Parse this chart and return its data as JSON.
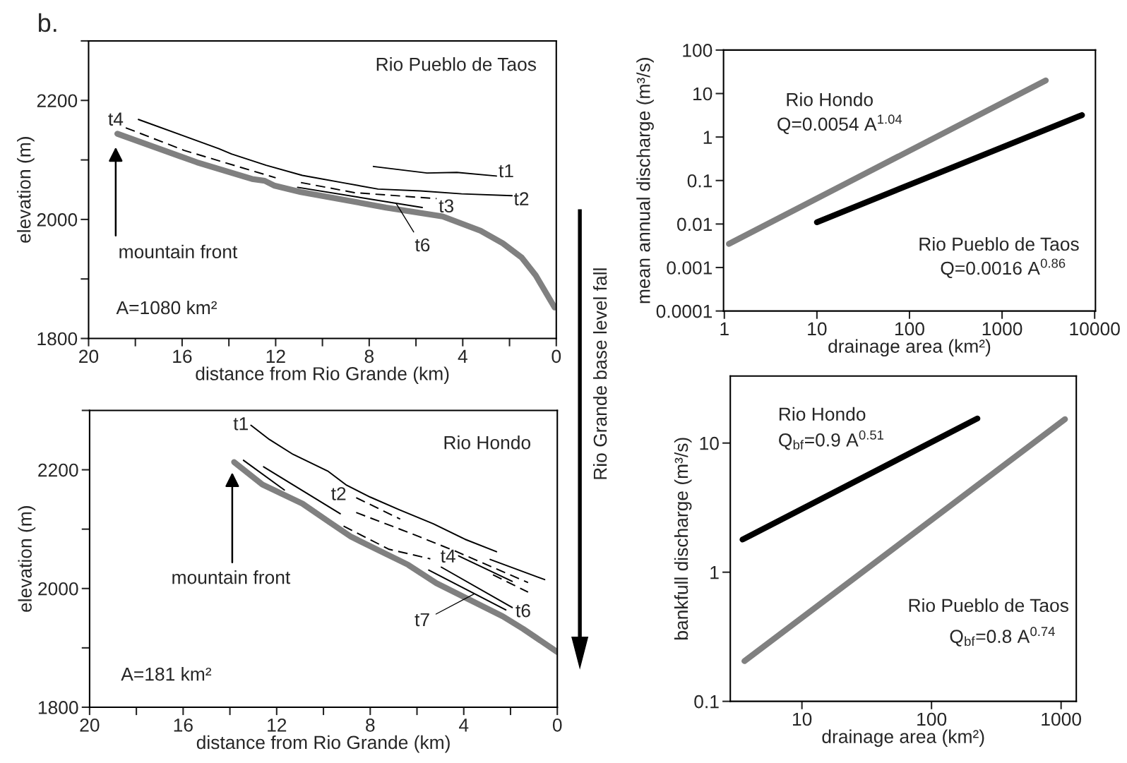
{
  "chart_data": [
    {
      "type": "line",
      "title": "Rio Pueblo de Taos",
      "xlabel": "distance from Rio Grande (km)",
      "ylabel": "elevation (m)",
      "xlim": [
        20,
        0
      ],
      "ylim": [
        1800,
        2300
      ],
      "xticks": [
        20,
        {
          "value": 18,
          "label": null
        },
        16,
        {
          "value": 14,
          "label": null
        },
        12,
        {
          "value": 10,
          "label": null
        },
        8,
        {
          "value": 6,
          "label": null
        },
        4,
        {
          "value": 2,
          "label": null
        },
        0
      ],
      "yticks": [
        1800,
        {
          "value": 1900,
          "label": null
        },
        2000,
        {
          "value": 2100,
          "label": null
        },
        2200,
        {
          "value": 2300,
          "label": null
        }
      ],
      "series": [
        {
          "color": "#808080",
          "line_style": "solid",
          "x": [
            18.77,
            15.37,
            13.01,
            12.47,
            12.07,
            10.92,
            7.28,
            4.86,
            3.24,
            2.29,
            1.48,
            0.88,
            0.4,
            0.07
          ],
          "values": [
            2144,
            2096,
            2068,
            2065,
            2057,
            2046,
            2020,
            2005,
            1981,
            1960,
            1936,
            1906,
            1874,
            1852
          ]
        },
        {
          "color": "#000000",
          "line_style": "solid",
          "x": [
            7.82,
            5.53,
            4.25,
            2.56
          ],
          "values": [
            2089,
            2078,
            2079,
            2073
          ]
        },
        {
          "color": "#000000",
          "line_style": "solid",
          "x": [
            17.87,
            16.05,
            14.43,
            13.89,
            12.41,
            10.86,
            9.17,
            7.62,
            5.8,
            4.05,
            1.89
          ],
          "values": [
            2168,
            2142,
            2119,
            2110,
            2091,
            2074,
            2062,
            2051,
            2048,
            2043,
            2040
          ]
        },
        {
          "color": "#000000",
          "line_style": "dashed",
          "x": [
            18.41,
            15.91,
            12.0
          ],
          "values": [
            2154,
            2116,
            2070
          ]
        },
        {
          "color": "#000000",
          "line_style": "dashed",
          "x": [
            10.92,
            8.63,
            5.12
          ],
          "values": [
            2062,
            2045,
            2035
          ]
        },
        {
          "color": "#000000",
          "line_style": "solid",
          "x": [
            11.06,
            5.73
          ],
          "values": [
            2054,
            2020
          ]
        }
      ],
      "annotations": [
        "b.",
        "Rio Grande base level fall",
        "A=1080 km²",
        "t4",
        "t1",
        "t2",
        "t3",
        {
          "text": "t6",
          "x": 6.85,
          "y": 2027
        },
        "mountain front"
      ]
    },
    {
      "type": "line",
      "title": "Rio Hondo",
      "xlabel": "distance from Rio Grande (km)",
      "ylabel": "elevation (m)",
      "xlim": [
        20,
        0
      ],
      "ylim": [
        1800,
        2300
      ],
      "xticks": [
        20,
        {
          "value": 18,
          "label": null
        },
        16,
        {
          "value": 14,
          "label": null
        },
        12,
        {
          "value": 10,
          "label": null
        },
        8,
        {
          "value": 6,
          "label": null
        },
        4,
        {
          "value": 2,
          "label": null
        },
        0
      ],
      "yticks": [
        1800,
        {
          "value": 1900,
          "label": null
        },
        2000,
        {
          "value": 2100,
          "label": null
        },
        2200,
        {
          "value": 2300,
          "label": null
        }
      ],
      "series": [
        {
          "color": "#808080",
          "line_style": "solid",
          "x": [
            13.82,
            12.61,
            10.9,
            9.75,
            8.81,
            6.38,
            5.17,
            2.33,
            1.46,
            0
          ],
          "values": [
            2213,
            2175,
            2143,
            2112,
            2087,
            2040,
            2009,
            1953,
            1932,
            1893
          ]
        },
        {
          "color": "#000000",
          "line_style": "solid",
          "x": [
            13.1,
            12.31,
            11.3,
            9.82,
            9.01,
            8.0,
            6.78,
            5.3,
            3.95,
            2.6
          ],
          "values": [
            2275,
            2251,
            2226,
            2198,
            2174,
            2154,
            2133,
            2109,
            2083,
            2062
          ]
        },
        {
          "color": "#000000",
          "line_style": "solid",
          "x": [
            2.87,
            0.54
          ],
          "values": [
            2049,
            2015
          ]
        },
        {
          "color": "#000000",
          "line_style": "solid",
          "x": [
            13.42,
            11.67
          ],
          "values": [
            2216,
            2166
          ]
        },
        {
          "color": "#000000",
          "line_style": "solid",
          "x": [
            12.56,
            9.28
          ],
          "values": [
            2205,
            2126
          ]
        },
        {
          "color": "#000000",
          "line_style": "dashed",
          "x": [
            8.6,
            6.72
          ],
          "values": [
            2153,
            2117
          ]
        },
        {
          "color": "#000000",
          "line_style": "dashed",
          "x": [
            8.6,
            6.2,
            4.3,
            1.25
          ],
          "values": [
            2128,
            2092,
            2062,
            2010
          ]
        },
        {
          "color": "#000000",
          "line_style": "dashed",
          "x": [
            9.14,
            7.19,
            5.43
          ],
          "values": [
            2105,
            2066,
            2050
          ]
        },
        {
          "color": "#000000",
          "line_style": "dashed",
          "x": [
            2.75,
            1.25
          ],
          "values": [
            2023,
            1994
          ]
        },
        {
          "color": "#000000",
          "line_style": "solid",
          "x": [
            4.22,
            1.93
          ],
          "values": [
            2055,
            2012
          ]
        },
        {
          "color": "#000000",
          "line_style": "solid",
          "x": [
            4.96,
            1.93
          ],
          "values": [
            2036,
            1968
          ]
        },
        {
          "color": "#000000",
          "line_style": "solid",
          "x": [
            5.5,
            2.2
          ],
          "values": [
            2031,
            1964
          ]
        }
      ],
      "annotations": [
        "A=181 km²",
        "t1",
        "t2",
        "t4",
        "t6",
        {
          "text": "t7",
          "x": 3.55,
          "y": 1991
        },
        "mountain front"
      ]
    },
    {
      "type": "line",
      "xlabel": "drainage area (km²)",
      "ylabel": "mean annual discharge (m³/s)",
      "log": "xy",
      "xlim": [
        0.98,
        10200
      ],
      "ylim": [
        0.0001,
        100
      ],
      "xticks": [
        1,
        10,
        100,
        1000,
        10000
      ],
      "yticks": [
        0.0001,
        0.001,
        0.01,
        0.1,
        1,
        10,
        100
      ],
      "series": [
        {
          "color": "#808080",
          "line_style": "solid",
          "x": [
            1.12,
            2965
          ],
          "values": [
            0.0035,
            20
          ]
        },
        {
          "color": "#000000",
          "line_style": "solid",
          "x": [
            10,
            7300
          ],
          "values": [
            0.011,
            3.2
          ]
        }
      ],
      "annotations": [
        "Rio Hondo",
        "Q=0.0054 A$^{1.04}$",
        "Rio Pueblo de Taos",
        "Q=0.0016 A$^{0.86}$"
      ]
    },
    {
      "type": "line",
      "xlabel": "drainage area (km²)",
      "ylabel": "bankfull discharge (m³/s)",
      "log": "xy",
      "xlim": [
        2.8,
        1310
      ],
      "ylim": [
        0.1,
        33
      ],
      "xticks": [
        10,
        100,
        1000
      ],
      "yticks": [
        0.1,
        1,
        10
      ],
      "series": [
        {
          "color": "#000000",
          "line_style": "solid",
          "x": [
            3.48,
            226
          ],
          "values": [
            1.79,
            15.5
          ]
        },
        {
          "color": "#808080",
          "line_style": "solid",
          "x": [
            3.6,
            1072
          ],
          "values": [
            0.205,
            15.3
          ]
        }
      ],
      "annotations": [
        "Rio Hondo",
        "Q$_{bf}$=0.9 A$^{0.51}$",
        "Rio Pueblo de Taos",
        "Q$_{bf}$=0.8 A$^{0.74}$"
      ]
    }
  ]
}
